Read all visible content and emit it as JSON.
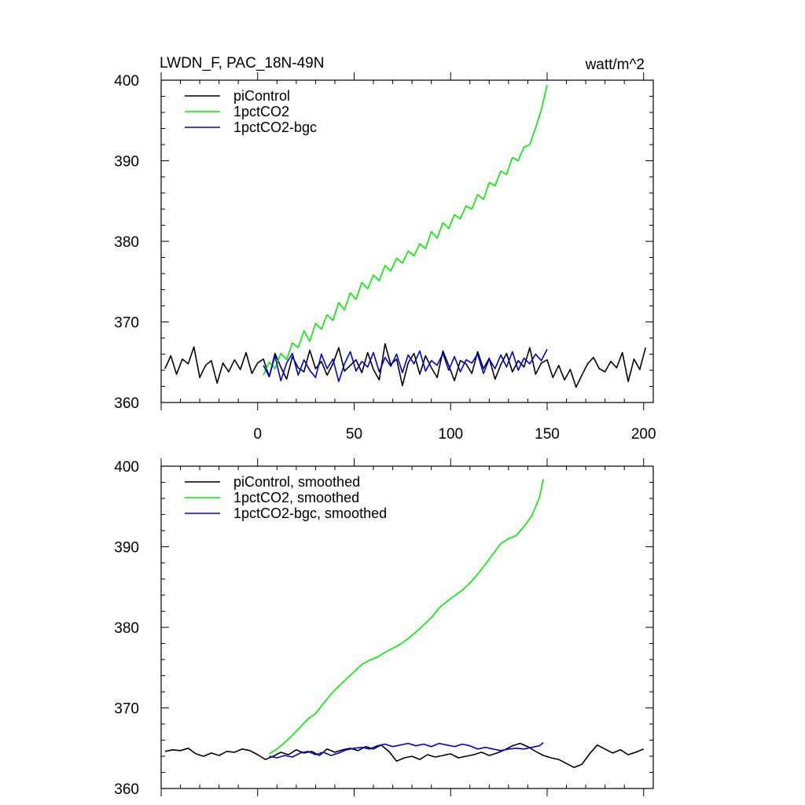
{
  "figure": {
    "title_left": "LWDN_F, PAC_18N-49N",
    "title_right": "watt/m^2"
  },
  "colors": {
    "piControl": "#000000",
    "1pctCO2": "#00ee00",
    "1pctCO2-bgc": "#0000dd"
  },
  "chart_data": [
    {
      "type": "line",
      "title": "",
      "xlabel": "",
      "ylabel": "",
      "xlim": [
        -50,
        205
      ],
      "ylim": [
        360,
        400
      ],
      "xticks": [
        0,
        50,
        100,
        150,
        200
      ],
      "yticks": [
        360,
        370,
        380,
        390,
        400
      ],
      "grid": false,
      "legend_position": "top-left",
      "series": [
        {
          "name": "piControl",
          "color": "#000000",
          "x": [
            -48,
            -45,
            -42,
            -39,
            -36,
            -33,
            -30,
            -27,
            -24,
            -21,
            -18,
            -15,
            -12,
            -9,
            -6,
            -3,
            0,
            3,
            6,
            9,
            12,
            15,
            18,
            21,
            24,
            27,
            30,
            33,
            36,
            39,
            42,
            45,
            48,
            51,
            54,
            57,
            60,
            63,
            66,
            69,
            72,
            75,
            78,
            81,
            84,
            87,
            90,
            93,
            96,
            99,
            102,
            105,
            108,
            111,
            114,
            117,
            120,
            123,
            126,
            129,
            132,
            135,
            138,
            141,
            144,
            147,
            150,
            153,
            156,
            159,
            162,
            165,
            168,
            171,
            174,
            177,
            180,
            183,
            186,
            189,
            192,
            195,
            198,
            201
          ],
          "values": [
            364.2,
            365.8,
            363.5,
            365.4,
            364.8,
            366.9,
            363.1,
            364.6,
            365.2,
            362.4,
            364.9,
            363.8,
            365.3,
            364.1,
            366.2,
            363.6,
            364.9,
            365.4,
            363.2,
            366.1,
            364.4,
            362.9,
            365.7,
            364.3,
            363.8,
            366.5,
            364.2,
            365.1,
            363.4,
            364.8,
            366.8,
            363.9,
            364.6,
            365.3,
            363.7,
            366.2,
            364.1,
            362.8,
            367.3,
            364.7,
            365.4,
            362.1,
            364.9,
            366.1,
            363.5,
            365.8,
            364.3,
            363.1,
            366.4,
            364.6,
            362.7,
            365.2,
            364.8,
            363.6,
            366.3,
            364.2,
            365.5,
            362.9,
            364.7,
            366.1,
            363.8,
            365.2,
            364.4,
            366.8,
            363.5,
            364.9,
            365.3,
            363.1,
            364.6,
            362.8,
            364.1,
            361.9,
            363.4,
            364.8,
            365.6,
            364.2,
            363.8,
            365.1,
            364.3,
            366.2,
            362.6,
            365.4,
            364.1,
            366.8
          ]
        },
        {
          "name": "1pctCO2",
          "color": "#00ee00",
          "x": [
            3,
            6,
            9,
            12,
            15,
            18,
            21,
            24,
            27,
            30,
            33,
            36,
            39,
            42,
            45,
            48,
            51,
            54,
            57,
            60,
            63,
            66,
            69,
            72,
            75,
            78,
            81,
            84,
            87,
            90,
            93,
            96,
            99,
            102,
            105,
            108,
            111,
            114,
            117,
            120,
            123,
            126,
            129,
            132,
            135,
            138,
            141,
            144,
            147,
            150
          ],
          "values": [
            363.4,
            365.0,
            364.2,
            366.1,
            365.3,
            367.4,
            366.8,
            368.9,
            367.6,
            369.8,
            369.1,
            370.9,
            370.2,
            372.4,
            371.5,
            373.6,
            372.8,
            374.9,
            374.1,
            375.8,
            375.1,
            377.0,
            376.3,
            377.9,
            377.3,
            378.8,
            378.2,
            379.7,
            379.1,
            381.2,
            380.4,
            382.3,
            381.6,
            383.3,
            382.8,
            384.4,
            384.0,
            385.8,
            385.2,
            387.3,
            386.9,
            388.7,
            388.3,
            390.4,
            390.0,
            391.7,
            392.0,
            394.1,
            396.3,
            399.4
          ]
        },
        {
          "name": "1pctCO2-bgc",
          "color": "#0000dd",
          "x": [
            3,
            6,
            9,
            12,
            15,
            18,
            21,
            24,
            27,
            30,
            33,
            36,
            39,
            42,
            45,
            48,
            51,
            54,
            57,
            60,
            63,
            66,
            69,
            72,
            75,
            78,
            81,
            84,
            87,
            90,
            93,
            96,
            99,
            102,
            105,
            108,
            111,
            114,
            117,
            120,
            123,
            126,
            129,
            132,
            135,
            138,
            141,
            144,
            147,
            150
          ],
          "values": [
            364.6,
            363.2,
            365.8,
            362.7,
            364.9,
            366.1,
            363.4,
            365.3,
            364.0,
            363.1,
            366.0,
            364.2,
            365.4,
            362.6,
            364.8,
            366.3,
            363.9,
            365.1,
            364.4,
            366.2,
            363.8,
            365.6,
            364.5,
            366.0,
            363.7,
            365.9,
            364.8,
            366.4,
            363.9,
            365.2,
            364.6,
            366.1,
            364.0,
            365.7,
            363.8,
            365.3,
            364.9,
            366.0,
            363.6,
            365.4,
            364.2,
            365.9,
            364.4,
            366.3,
            364.0,
            365.5,
            364.8,
            366.0,
            365.2,
            366.6
          ]
        }
      ]
    },
    {
      "type": "line",
      "title": "",
      "xlabel": "",
      "ylabel": "",
      "xlim": [
        -50,
        205
      ],
      "ylim": [
        360,
        400
      ],
      "xticks": [
        0,
        50,
        100,
        150,
        200
      ],
      "yticks": [
        360,
        370,
        380,
        390,
        400
      ],
      "grid": false,
      "legend_position": "top-left",
      "series": [
        {
          "name": "piControl, smoothed",
          "color": "#000000",
          "x": [
            -48,
            -44,
            -40,
            -36,
            -32,
            -28,
            -24,
            -20,
            -16,
            -12,
            -8,
            -4,
            0,
            4,
            8,
            12,
            16,
            20,
            24,
            28,
            32,
            36,
            40,
            44,
            48,
            52,
            56,
            60,
            64,
            68,
            72,
            76,
            80,
            84,
            88,
            92,
            96,
            100,
            104,
            108,
            112,
            116,
            120,
            124,
            128,
            132,
            136,
            140,
            144,
            148,
            152,
            156,
            160,
            164,
            168,
            172,
            176,
            180,
            184,
            188,
            192,
            196,
            200
          ],
          "values": [
            364.6,
            364.8,
            364.7,
            365.0,
            364.3,
            364.0,
            364.4,
            364.1,
            364.6,
            364.5,
            364.9,
            364.7,
            364.2,
            363.6,
            364.0,
            364.5,
            364.2,
            364.8,
            364.4,
            364.6,
            364.1,
            364.9,
            364.5,
            364.8,
            365.0,
            364.7,
            365.2,
            364.9,
            365.4,
            364.6,
            363.4,
            363.8,
            364.0,
            363.6,
            364.2,
            363.9,
            364.1,
            364.3,
            363.8,
            364.0,
            364.2,
            364.5,
            364.1,
            364.4,
            364.8,
            365.3,
            365.6,
            365.2,
            364.6,
            364.1,
            363.8,
            363.6,
            363.1,
            362.6,
            363.0,
            364.3,
            365.4,
            364.9,
            364.4,
            364.8,
            364.2,
            364.5,
            364.9
          ]
        },
        {
          "name": "1pctCO2, smoothed",
          "color": "#00ee00",
          "x": [
            6,
            10,
            14,
            18,
            22,
            26,
            30,
            34,
            38,
            42,
            46,
            50,
            54,
            58,
            62,
            66,
            70,
            74,
            78,
            82,
            86,
            90,
            94,
            98,
            102,
            106,
            110,
            114,
            118,
            122,
            126,
            130,
            134,
            138,
            142,
            146,
            148
          ],
          "values": [
            364.3,
            364.9,
            365.7,
            366.6,
            367.6,
            368.6,
            369.3,
            370.5,
            371.7,
            372.7,
            373.6,
            374.5,
            375.4,
            375.9,
            376.3,
            376.9,
            377.4,
            377.9,
            378.6,
            379.4,
            380.3,
            381.2,
            382.4,
            383.2,
            383.9,
            384.6,
            385.5,
            386.6,
            387.8,
            389.1,
            390.4,
            391.0,
            391.4,
            392.5,
            393.8,
            396.1,
            398.4
          ]
        },
        {
          "name": "1pctCO2-bgc, smoothed",
          "color": "#0000dd",
          "x": [
            6,
            10,
            14,
            18,
            22,
            26,
            30,
            34,
            38,
            42,
            46,
            50,
            54,
            58,
            62,
            66,
            70,
            74,
            78,
            82,
            86,
            90,
            94,
            98,
            102,
            106,
            110,
            114,
            118,
            122,
            126,
            130,
            134,
            138,
            142,
            146,
            148
          ],
          "values": [
            364.0,
            363.8,
            364.1,
            363.9,
            364.4,
            364.6,
            364.2,
            364.5,
            364.1,
            364.4,
            364.8,
            365.0,
            365.1,
            364.9,
            365.3,
            365.5,
            365.2,
            365.4,
            365.6,
            365.3,
            365.5,
            365.2,
            365.6,
            365.4,
            365.2,
            365.5,
            365.3,
            364.9,
            365.1,
            364.9,
            364.7,
            364.9,
            365.0,
            364.9,
            365.1,
            365.3,
            365.7
          ]
        }
      ]
    }
  ]
}
